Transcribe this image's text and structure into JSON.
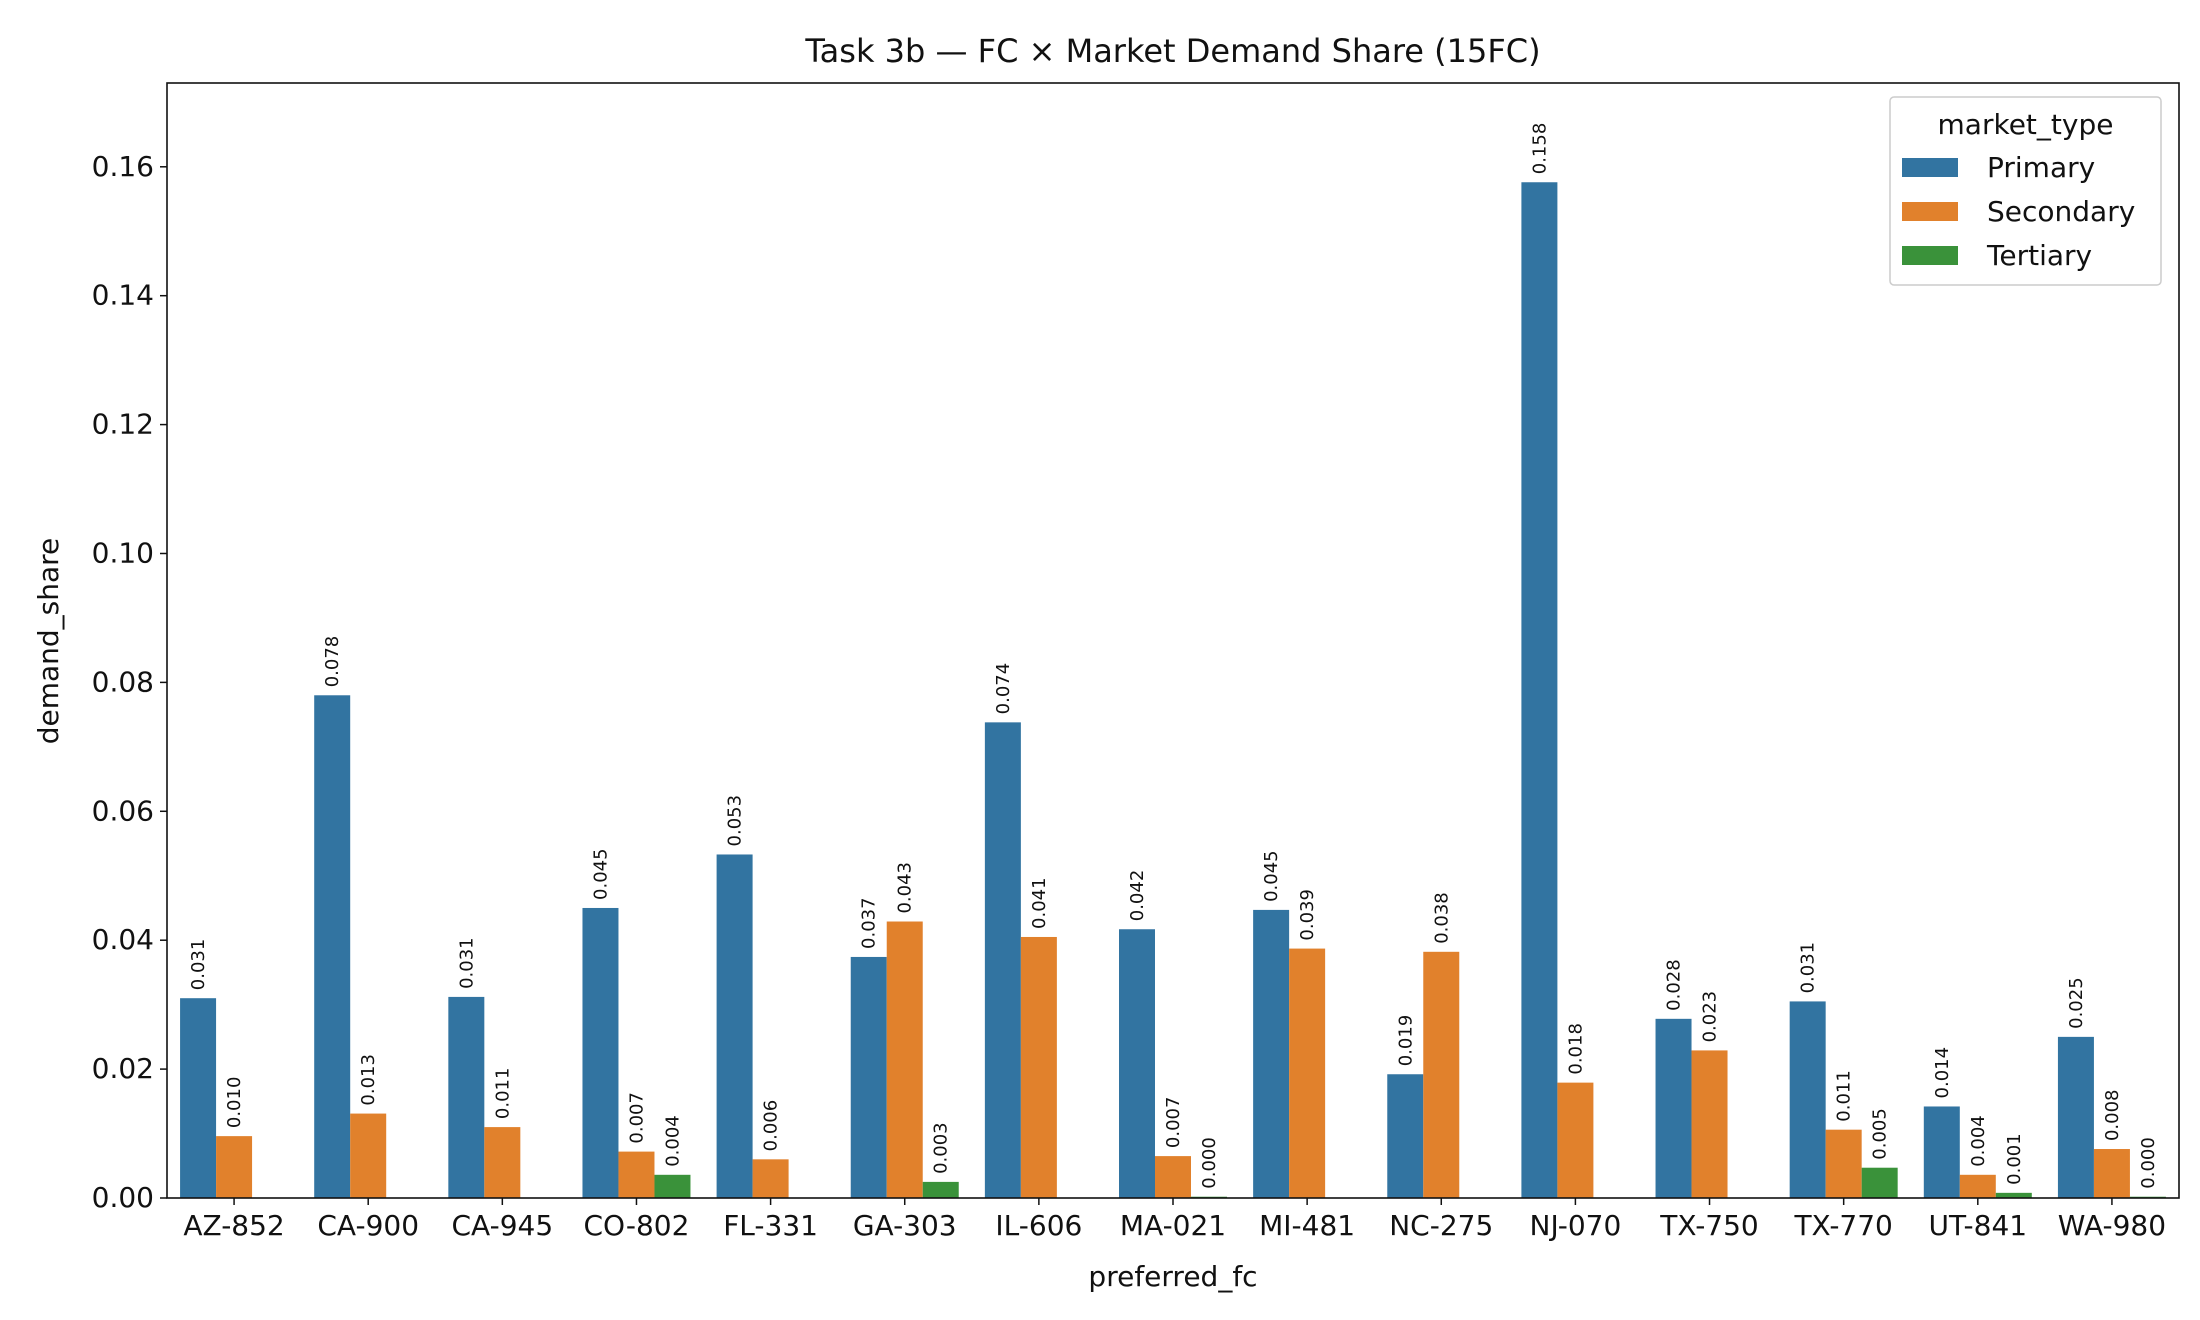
{
  "chart_data": {
    "type": "bar",
    "title": "Task 3b — FC × Market Demand Share (15FC)",
    "xlabel": "preferred_fc",
    "ylabel": "demand_share",
    "ylim": [
      0,
      0.173
    ],
    "yticks": [
      "0.00",
      "0.02",
      "0.04",
      "0.06",
      "0.08",
      "0.10",
      "0.12",
      "0.14",
      "0.16"
    ],
    "ytick_values": [
      0,
      0.02,
      0.04,
      0.06,
      0.08,
      0.1,
      0.12,
      0.14,
      0.16
    ],
    "legend": {
      "title": "market_type",
      "position": "top-right"
    },
    "categories": [
      "AZ-852",
      "CA-900",
      "CA-945",
      "CO-802",
      "FL-331",
      "GA-303",
      "IL-606",
      "MA-021",
      "MI-481",
      "NC-275",
      "NJ-070",
      "TX-750",
      "TX-770",
      "UT-841",
      "WA-980"
    ],
    "series": [
      {
        "name": "Primary",
        "color": "#3274a1",
        "values": [
          0.031,
          0.078,
          0.0312,
          0.045,
          0.0533,
          0.0374,
          0.0738,
          0.0417,
          0.0447,
          0.0192,
          0.1576,
          0.0278,
          0.0305,
          0.0142,
          0.025
        ],
        "labels": [
          "0.031",
          "0.078",
          "0.031",
          "0.045",
          "0.053",
          "0.037",
          "0.074",
          "0.042",
          "0.045",
          "0.019",
          "0.158",
          "0.028",
          "0.031",
          "0.014",
          "0.025"
        ]
      },
      {
        "name": "Secondary",
        "color": "#e1812c",
        "values": [
          0.0096,
          0.0131,
          0.011,
          0.0072,
          0.006,
          0.0429,
          0.0405,
          0.0065,
          0.0387,
          0.0382,
          0.0179,
          0.0229,
          0.0106,
          0.0036,
          0.0076
        ],
        "labels": [
          "0.010",
          "0.013",
          "0.011",
          "0.007",
          "0.006",
          "0.043",
          "0.041",
          "0.007",
          "0.039",
          "0.038",
          "0.018",
          "0.023",
          "0.011",
          "0.004",
          "0.008"
        ]
      },
      {
        "name": "Tertiary",
        "color": "#3a923a",
        "values": [
          null,
          null,
          null,
          0.0036,
          null,
          0.0025,
          null,
          0.0002,
          null,
          null,
          null,
          null,
          0.0047,
          0.0008,
          0.0002
        ],
        "labels": [
          null,
          null,
          null,
          "0.004",
          null,
          "0.003",
          null,
          "0.000",
          null,
          null,
          null,
          null,
          "0.005",
          "0.001",
          "0.000"
        ]
      }
    ]
  }
}
